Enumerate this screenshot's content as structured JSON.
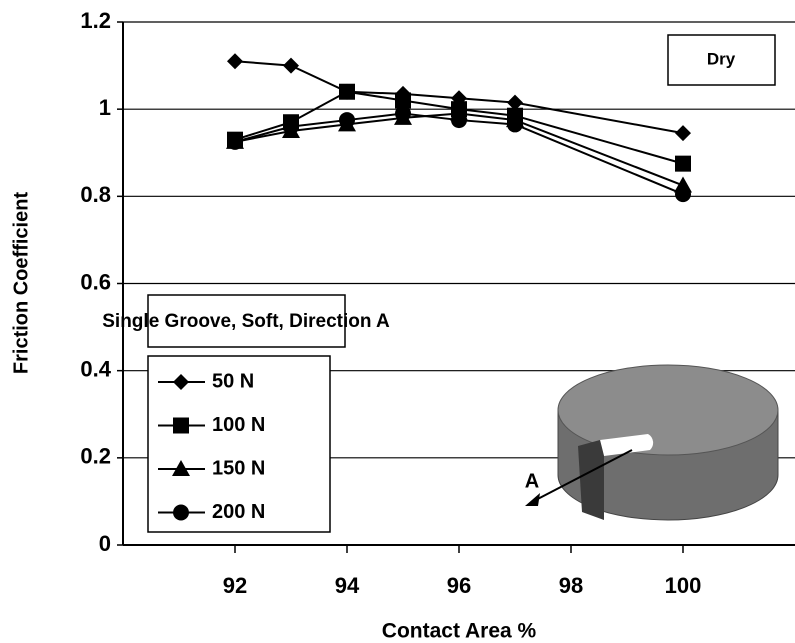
{
  "chart_data": {
    "type": "line",
    "x_label": "Contact Area %",
    "y_label": "Friction Coefficient",
    "annotations": [
      "Dry",
      "Single Groove, Soft, Direction A",
      "A"
    ],
    "x": [
      92,
      93,
      94,
      95,
      96,
      97,
      100
    ],
    "series": [
      {
        "name": "50 N",
        "color": "#000000",
        "marker": "diamond",
        "values": [
          1.11,
          1.1,
          1.04,
          1.035,
          1.025,
          1.015,
          0.945
        ]
      },
      {
        "name": "100 N",
        "color": "#000000",
        "marker": "square",
        "values": [
          0.93,
          0.97,
          1.04,
          1.02,
          1.0,
          0.985,
          0.875
        ]
      },
      {
        "name": "150 N",
        "color": "#000000",
        "marker": "triangle",
        "values": [
          0.925,
          0.95,
          0.965,
          0.98,
          0.99,
          0.975,
          0.825
        ]
      },
      {
        "name": "200 N",
        "color": "#000000",
        "marker": "circle",
        "values": [
          0.925,
          0.96,
          0.975,
          0.99,
          0.975,
          0.965,
          0.805
        ]
      }
    ],
    "xlim": [
      90,
      102
    ],
    "xticks": [
      92,
      94,
      96,
      98,
      100
    ],
    "ylim": [
      0,
      1.2
    ],
    "yticks": [
      0,
      0.2,
      0.4,
      0.6,
      0.8,
      1,
      1.2
    ],
    "grid": true
  }
}
